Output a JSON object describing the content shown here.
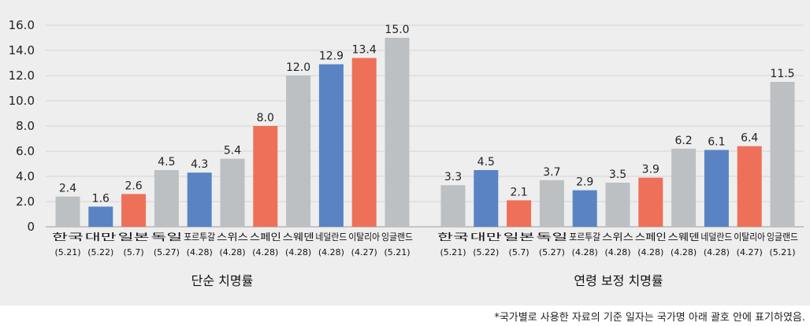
{
  "chart_data": [
    {
      "type": "bar",
      "title": "",
      "xlabel": "단순 치명률",
      "ylabel": "",
      "ylim": [
        0,
        16
      ],
      "yticks": [
        "0",
        "2.0",
        "4.0",
        "6.0",
        "8.0",
        "10.0",
        "12.0",
        "14.0",
        "16.0"
      ],
      "grid": true,
      "categories": [
        "한국",
        "대만",
        "일본",
        "독일",
        "포르투갈",
        "스위스",
        "스페인",
        "스웨덴",
        "네덜란드",
        "이탈리아",
        "잉글랜드"
      ],
      "dates": [
        "(5.21)",
        "(5.22)",
        "(5.7)",
        "(5.27)",
        "(4.28)",
        "(4.28)",
        "(4.28)",
        "(4.28)",
        "(4.28)",
        "(4.27)",
        "(5.21)"
      ],
      "values": [
        2.4,
        1.6,
        2.6,
        4.5,
        4.3,
        5.4,
        8.0,
        12.0,
        12.9,
        13.4,
        15.0
      ],
      "labels": [
        "2.4",
        "1.6",
        "2.6",
        "4.5",
        "4.3",
        "5.4",
        "8.0",
        "12.0",
        "12.9",
        "13.4",
        "15.0"
      ],
      "colors": [
        "#bcc0c3",
        "#5a83c4",
        "#ee7058",
        "#bcc0c3",
        "#5a83c4",
        "#bcc0c3",
        "#ee7058",
        "#bcc0c3",
        "#5a83c4",
        "#ee7058",
        "#bcc0c3"
      ]
    },
    {
      "type": "bar",
      "title": "",
      "xlabel": "연령 보정 치명률",
      "ylabel": "",
      "ylim": [
        0,
        16
      ],
      "categories": [
        "한국",
        "대만",
        "일본",
        "독일",
        "포르투갈",
        "스위스",
        "스페인",
        "스웨덴",
        "네덜란드",
        "이탈리아",
        "잉글랜드"
      ],
      "dates": [
        "(5.21)",
        "(5.22)",
        "(5.7)",
        "(5.27)",
        "(4.28)",
        "(4.28)",
        "(4.28)",
        "(4.28)",
        "(4.28)",
        "(4.27)",
        "(5.21)"
      ],
      "values": [
        3.3,
        4.5,
        2.1,
        3.7,
        2.9,
        3.5,
        3.9,
        6.2,
        6.1,
        6.4,
        11.5
      ],
      "labels": [
        "3.3",
        "4.5",
        "2.1",
        "3.7",
        "2.9",
        "3.5",
        "3.9",
        "6.2",
        "6.1",
        "6.4",
        "11.5"
      ],
      "colors": [
        "#bcc0c3",
        "#5a83c4",
        "#ee7058",
        "#bcc0c3",
        "#5a83c4",
        "#bcc0c3",
        "#ee7058",
        "#bcc0c3",
        "#5a83c4",
        "#ee7058",
        "#bcc0c3"
      ]
    }
  ],
  "footnote": "*국가별로  사용한 자료의 기준 일자는 국가명 아래 괄호 안에 표기하였음."
}
